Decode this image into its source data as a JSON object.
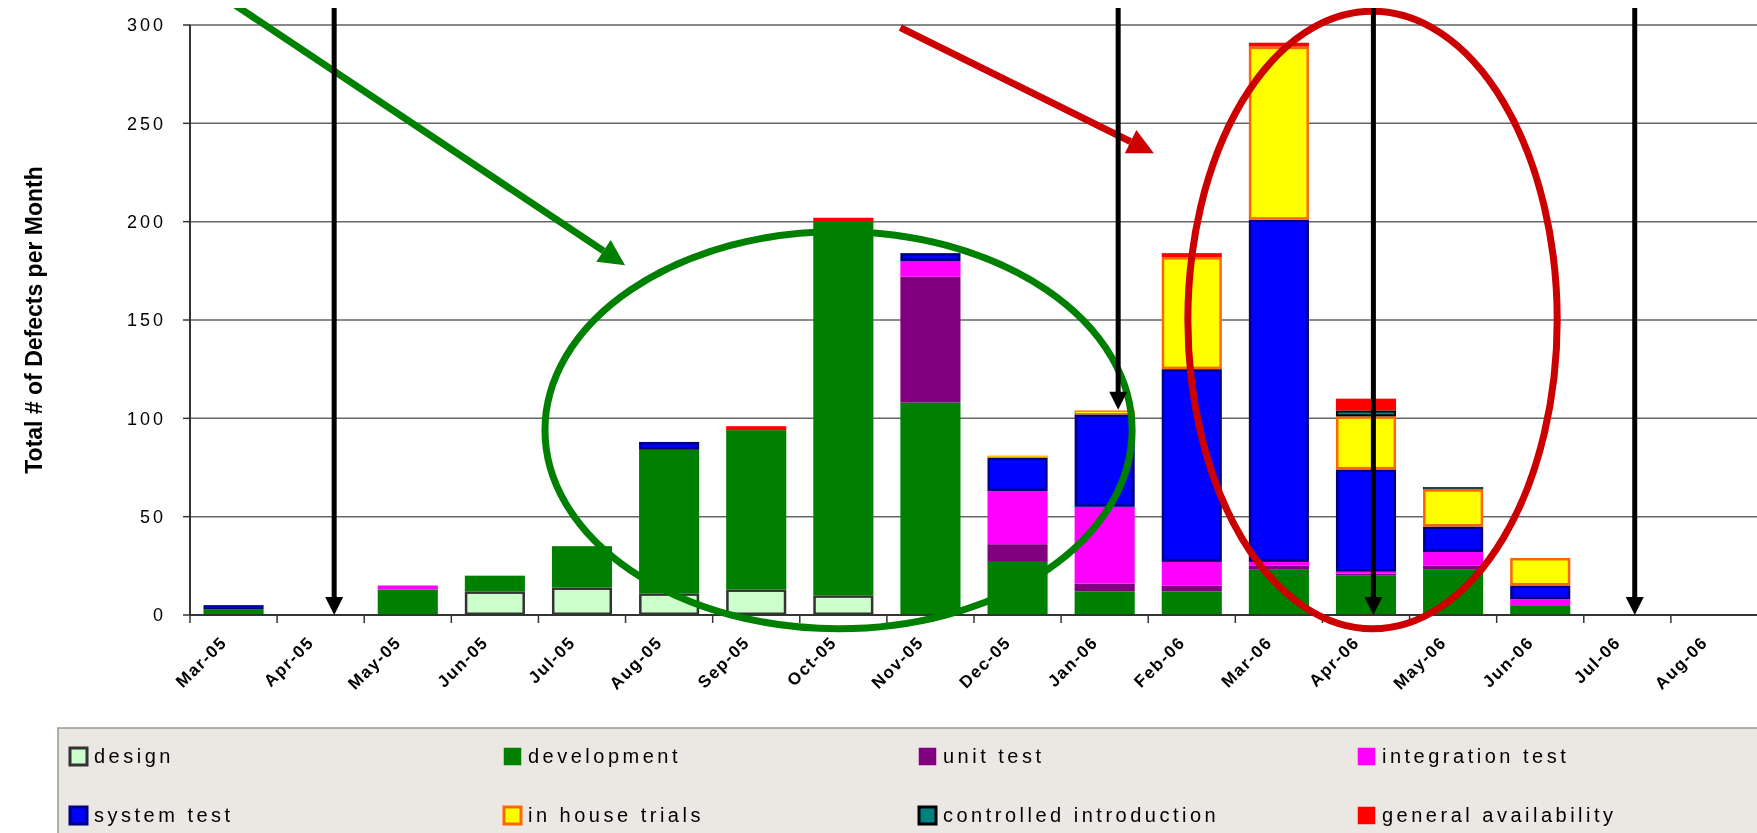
{
  "chart_data": {
    "type": "bar",
    "stacked": true,
    "ylabel": "Total # of Defects per Month",
    "categories": [
      "Mar-05",
      "Apr-05",
      "May-05",
      "Jun-05",
      "Jul-05",
      "Aug-05",
      "Sep-05",
      "Oct-05",
      "Nov-05",
      "Dec-05",
      "Jan-06",
      "Feb-06",
      "Mar-06",
      "Apr-06",
      "May-06",
      "Jun-06",
      "Jul-06",
      "Aug-06"
    ],
    "series": [
      {
        "name": "design",
        "color": "#ccffcc",
        "values": [
          0,
          0,
          0,
          12,
          14,
          11,
          13,
          10,
          0,
          0,
          0,
          0,
          0,
          0,
          0,
          0,
          0,
          0
        ]
      },
      {
        "name": "development",
        "color": "#008000",
        "values": [
          3,
          0,
          13,
          8,
          21,
          73,
          81,
          190,
          108,
          27,
          12,
          12,
          23,
          20,
          23,
          5,
          0,
          0
        ]
      },
      {
        "name": "unit test",
        "color": "#800080",
        "values": [
          0,
          0,
          0,
          0,
          0,
          0,
          0,
          0,
          64,
          9,
          4,
          3,
          2,
          1,
          2,
          0,
          0,
          0
        ]
      },
      {
        "name": "integration test",
        "color": "#ff00ff",
        "values": [
          0,
          0,
          2,
          0,
          0,
          0,
          0,
          0,
          8,
          27,
          39,
          12,
          2,
          1,
          7,
          3,
          0,
          0
        ]
      },
      {
        "name": "system test",
        "color": "#0000ff",
        "values": [
          2,
          0,
          0,
          0,
          0,
          4,
          0,
          0,
          4,
          17,
          47,
          98,
          174,
          52,
          13,
          7,
          0,
          0
        ]
      },
      {
        "name": "in house trials",
        "color": "#ffff00",
        "values": [
          0,
          0,
          0,
          0,
          0,
          0,
          0,
          0,
          0,
          1,
          2,
          57,
          88,
          27,
          19,
          14,
          0,
          0
        ]
      },
      {
        "name": "controlled introduction",
        "color": "#008080",
        "values": [
          0,
          0,
          0,
          0,
          0,
          0,
          0,
          0,
          0,
          0,
          0,
          0,
          0,
          3,
          1,
          0,
          0,
          0
        ]
      },
      {
        "name": "general availability",
        "color": "#ff0000",
        "values": [
          0,
          0,
          0,
          0,
          0,
          0,
          2,
          2,
          0,
          0,
          0,
          2,
          2,
          6,
          0,
          0,
          0,
          0
        ]
      }
    ],
    "ylim": [
      0,
      300
    ],
    "yticks": [
      0,
      50,
      100,
      150,
      200,
      250,
      300
    ],
    "grid": "y",
    "legend": "bottom"
  }
}
